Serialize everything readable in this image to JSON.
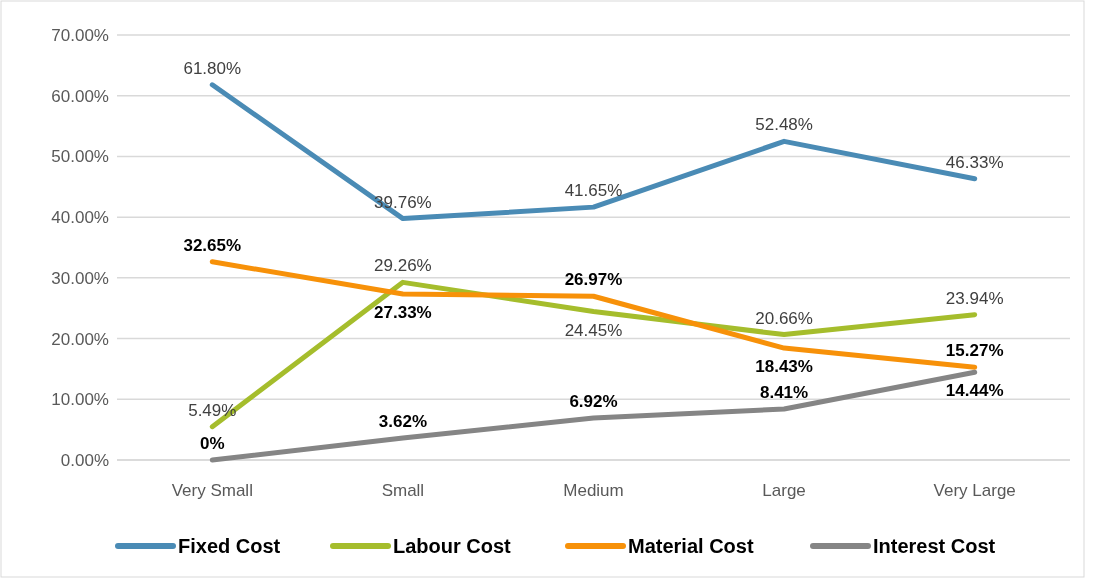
{
  "chart_data": {
    "type": "line",
    "categories": [
      "Very Small",
      "Small",
      "Medium",
      "Large",
      "Very Large"
    ],
    "series": [
      {
        "name": "Fixed Cost",
        "color": "#4a8bb5",
        "values": [
          61.8,
          39.76,
          41.65,
          52.48,
          46.33
        ],
        "value_labels": [
          "61.80%",
          "39.76%",
          "41.65%",
          "52.48%",
          "46.33%"
        ]
      },
      {
        "name": "Labour Cost",
        "color": "#a5bd2c",
        "values": [
          5.49,
          29.26,
          24.45,
          20.66,
          23.94
        ],
        "value_labels": [
          "5.49%",
          "29.26%",
          "24.45%",
          "20.66%",
          "23.94%"
        ]
      },
      {
        "name": "Material Cost",
        "color": "#f79109",
        "values": [
          32.65,
          27.33,
          26.97,
          18.43,
          15.27
        ],
        "value_labels": [
          "32.65%",
          "27.33%",
          "26.97%",
          "18.43%",
          "15.27%"
        ]
      },
      {
        "name": "Interest Cost",
        "color": "#858585",
        "values": [
          0,
          3.62,
          6.92,
          8.41,
          14.44
        ],
        "value_labels": [
          "0%",
          "3.62%",
          "6.92%",
          "8.41%",
          "14.44%"
        ]
      }
    ],
    "ylim": [
      0,
      70
    ],
    "yticks": [
      {
        "value": 0,
        "label": "0.00%"
      },
      {
        "value": 10,
        "label": "10.00%"
      },
      {
        "value": 20,
        "label": "20.00%"
      },
      {
        "value": 30,
        "label": "30.00%"
      },
      {
        "value": 40,
        "label": "40.00%"
      },
      {
        "value": 50,
        "label": "50.00%"
      },
      {
        "value": 60,
        "label": "60.00%"
      },
      {
        "value": 70,
        "label": "70.00%"
      }
    ],
    "grid": "y",
    "legend": "bottom",
    "marker": "none",
    "line_style": "solid"
  }
}
